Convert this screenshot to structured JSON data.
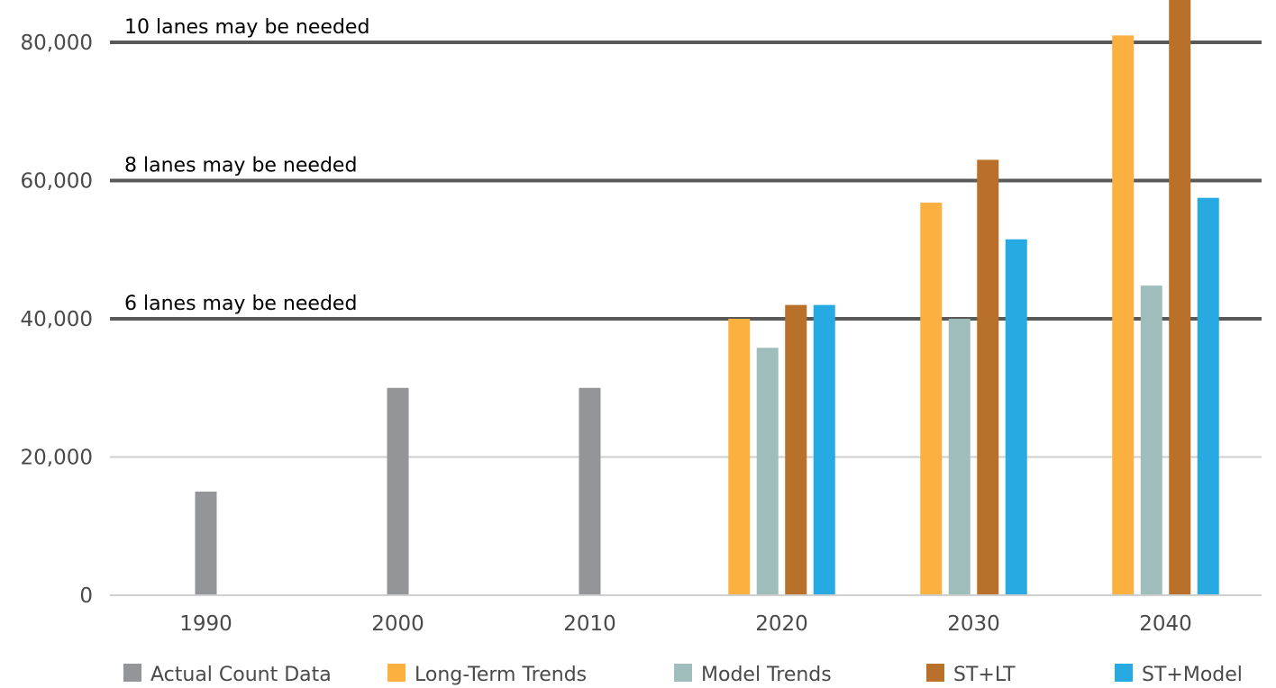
{
  "chart_data": {
    "type": "bar",
    "categories": [
      "1990",
      "2000",
      "2010",
      "2020",
      "2030",
      "2040"
    ],
    "series": [
      {
        "name": "Actual Count Data",
        "color": "#939598",
        "values": [
          15000,
          30000,
          30000,
          null,
          null,
          null
        ]
      },
      {
        "name": "Long-Term Trends",
        "color": "#fbb040",
        "values": [
          null,
          null,
          null,
          40000,
          56800,
          81000
        ]
      },
      {
        "name": "Model Trends",
        "color": "#9fbdbb",
        "values": [
          null,
          null,
          null,
          35800,
          40000,
          44800
        ]
      },
      {
        "name": "ST+LT",
        "color": "#b8702a",
        "values": [
          null,
          null,
          null,
          42000,
          63000,
          87000
        ]
      },
      {
        "name": "ST+Model",
        "color": "#27aae1",
        "values": [
          null,
          null,
          null,
          42000,
          51500,
          57500
        ]
      }
    ],
    "ylim": [
      0,
      85000
    ],
    "yticks": [
      0,
      20000,
      40000,
      60000,
      80000
    ],
    "ytick_labels": [
      "0",
      "20,000",
      "40,000",
      "60,000",
      "80,000"
    ],
    "thresholds": [
      {
        "value": 40000,
        "label": "6 lanes may be needed"
      },
      {
        "value": 60000,
        "label": "8 lanes may be needed"
      },
      {
        "value": 80000,
        "label": "10 lanes may be needed"
      }
    ],
    "grid": true,
    "legend_position": "bottom",
    "title": "",
    "xlabel": "",
    "ylabel": ""
  }
}
